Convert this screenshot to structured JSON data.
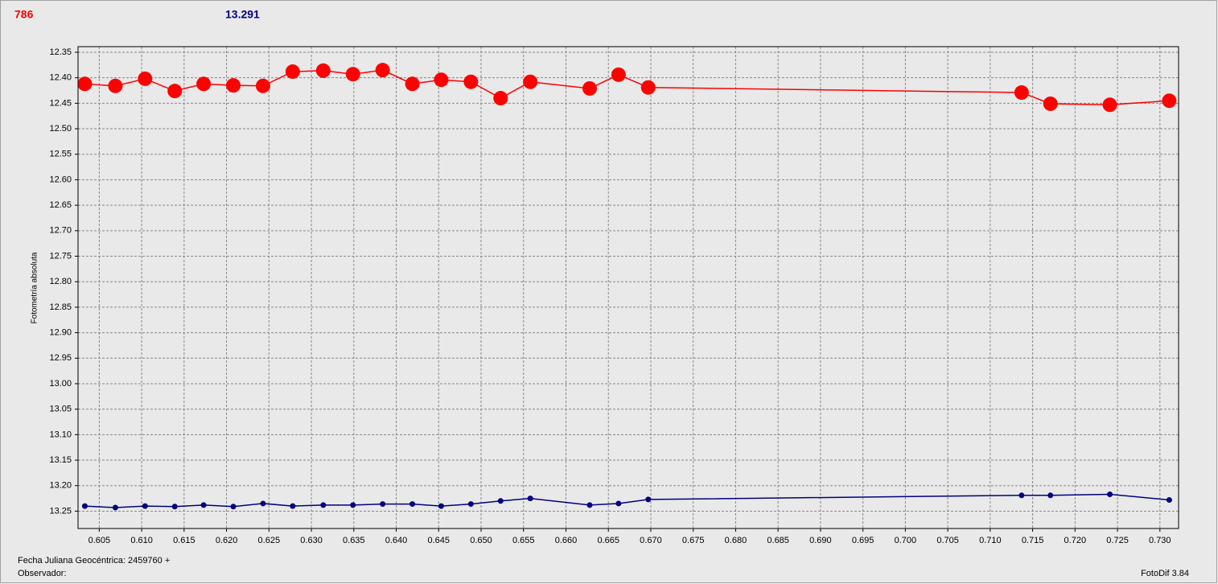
{
  "header": {
    "star": "786",
    "comparison": "13.291"
  },
  "chart_data": {
    "type": "line",
    "y_label": "Fotometría absoluta",
    "y_inverted": true,
    "grid": true,
    "xlim": [
      0.6025,
      0.7322
    ],
    "ylim": [
      12.339,
      13.284
    ],
    "xticks": [
      0.605,
      {
        "value": 0.61,
        "label": "0.610"
      },
      0.615,
      {
        "value": 0.62,
        "label": "0.620"
      },
      0.625,
      {
        "value": 0.63,
        "label": "0.630"
      },
      0.635,
      {
        "value": 0.64,
        "label": "0.640"
      },
      0.645,
      {
        "value": 0.65,
        "label": "0.650"
      },
      0.655,
      {
        "value": 0.66,
        "label": "0.660"
      },
      0.665,
      {
        "value": 0.67,
        "label": "0.670"
      },
      0.675,
      {
        "value": 0.68,
        "label": "0.680"
      },
      0.685,
      {
        "value": 0.69,
        "label": "0.690"
      },
      0.695,
      {
        "value": 0.7,
        "label": "0.700"
      },
      0.705,
      {
        "value": 0.71,
        "label": "0.710"
      },
      0.715,
      {
        "value": 0.72,
        "label": "0.720"
      },
      0.725,
      {
        "value": 0.73,
        "label": "0.730"
      }
    ],
    "yticks": [
      12.35,
      {
        "value": 12.4,
        "label": "12.40"
      },
      12.45,
      {
        "value": 12.5,
        "label": "12.50"
      },
      12.55,
      {
        "value": 12.6,
        "label": "12.60"
      },
      12.65,
      {
        "value": 12.7,
        "label": "12.70"
      },
      12.75,
      {
        "value": 12.8,
        "label": "12.80"
      },
      12.85,
      {
        "value": 12.9,
        "label": "12.90"
      },
      12.95,
      {
        "value": 13.0,
        "label": "13.00"
      },
      13.05,
      {
        "value": 13.1,
        "label": "13.10"
      },
      13.15,
      {
        "value": 13.2,
        "label": "13.20"
      },
      13.25
    ],
    "x": [
      0.6033,
      0.6069,
      0.6104,
      0.6139,
      0.6173,
      0.6208,
      0.6243,
      0.6278,
      0.6314,
      0.6349,
      0.6384,
      0.6419,
      0.6453,
      0.6488,
      0.6523,
      0.6558,
      0.6628,
      0.6662,
      0.6697,
      0.7137,
      0.7171,
      0.7241,
      0.7311
    ],
    "series": [
      {
        "color": "#ff0000",
        "values": [
          12.412,
          12.416,
          12.402,
          12.426,
          12.412,
          12.415,
          12.416,
          12.388,
          12.386,
          12.393,
          12.385,
          12.412,
          12.404,
          12.408,
          12.44,
          12.408,
          12.421,
          12.394,
          12.419,
          12.429,
          12.451,
          12.453,
          12.445
        ]
      },
      {
        "color": "#000080",
        "values": [
          13.24,
          13.243,
          13.24,
          13.241,
          13.238,
          13.241,
          13.235,
          13.24,
          13.238,
          13.238,
          13.236,
          13.236,
          13.24,
          13.236,
          13.23,
          13.225,
          13.238,
          13.235,
          13.227,
          13.219,
          13.219,
          13.217,
          13.228
        ]
      }
    ]
  },
  "footer": {
    "date": "Fecha Juliana Geocéntrica: 2459760 +",
    "observer": "Observador:",
    "version": "FotoDif 3.84"
  }
}
